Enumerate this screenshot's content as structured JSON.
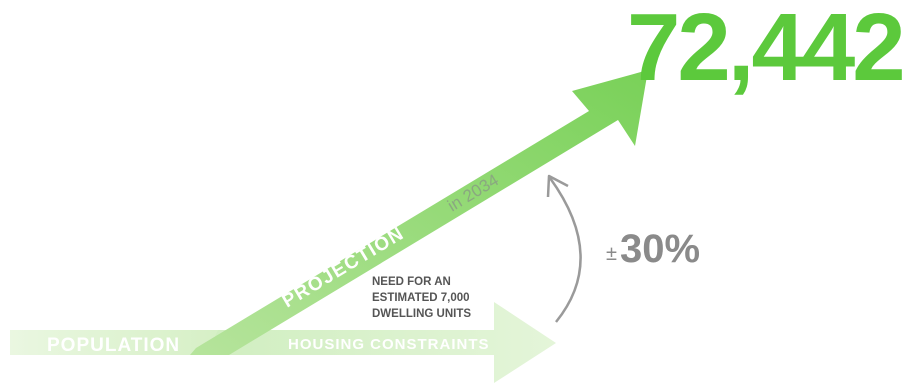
{
  "headline": {
    "value": "72,442"
  },
  "population_label": "POPULATION",
  "projection": {
    "label": "PROJECTION",
    "year_label": "in 2034"
  },
  "housing_label": "HOUSING CONSTRAINTS",
  "need_note": {
    "line1": "NEED FOR AN",
    "line2": "ESTIMATED 7,000",
    "line3": "DWELLING UNITS"
  },
  "change": {
    "sign": "±",
    "value": "30%"
  },
  "colors": {
    "green_strong": "#5cc93c",
    "green_arrow": "#8fd870",
    "green_light": "#dcf2cf",
    "gray_text": "#8a8a8a",
    "dark_text": "#555555",
    "white": "#ffffff"
  }
}
